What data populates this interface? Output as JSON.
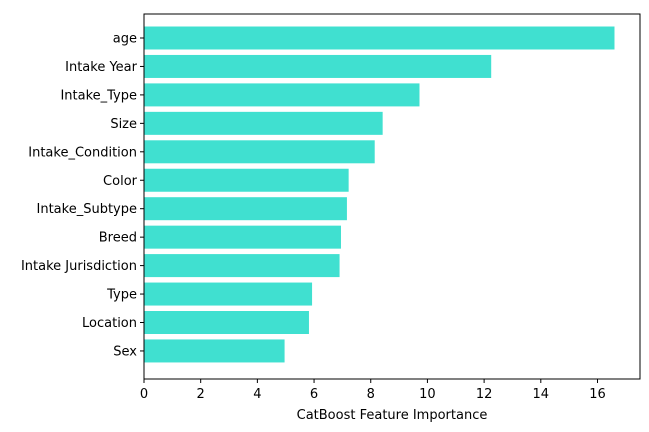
{
  "chart_data": {
    "type": "bar",
    "orientation": "horizontal",
    "categories": [
      "age",
      "Intake Year",
      "Intake_Type",
      "Size",
      "Intake_Condition",
      "Color",
      "Intake_Subtype",
      "Breed",
      "Intake Jurisdiction",
      "Type",
      "Location",
      "Sex"
    ],
    "values": [
      16.6,
      12.25,
      9.72,
      8.42,
      8.14,
      7.22,
      7.16,
      6.95,
      6.9,
      5.93,
      5.82,
      4.96
    ],
    "title": "",
    "xlabel": "CatBoost Feature Importance",
    "ylabel": "",
    "xlim": [
      0,
      17.5
    ],
    "xticks": [
      0,
      2,
      4,
      6,
      8,
      10,
      12,
      14,
      16
    ],
    "grid": false,
    "bar_color": "#40e0d0"
  }
}
